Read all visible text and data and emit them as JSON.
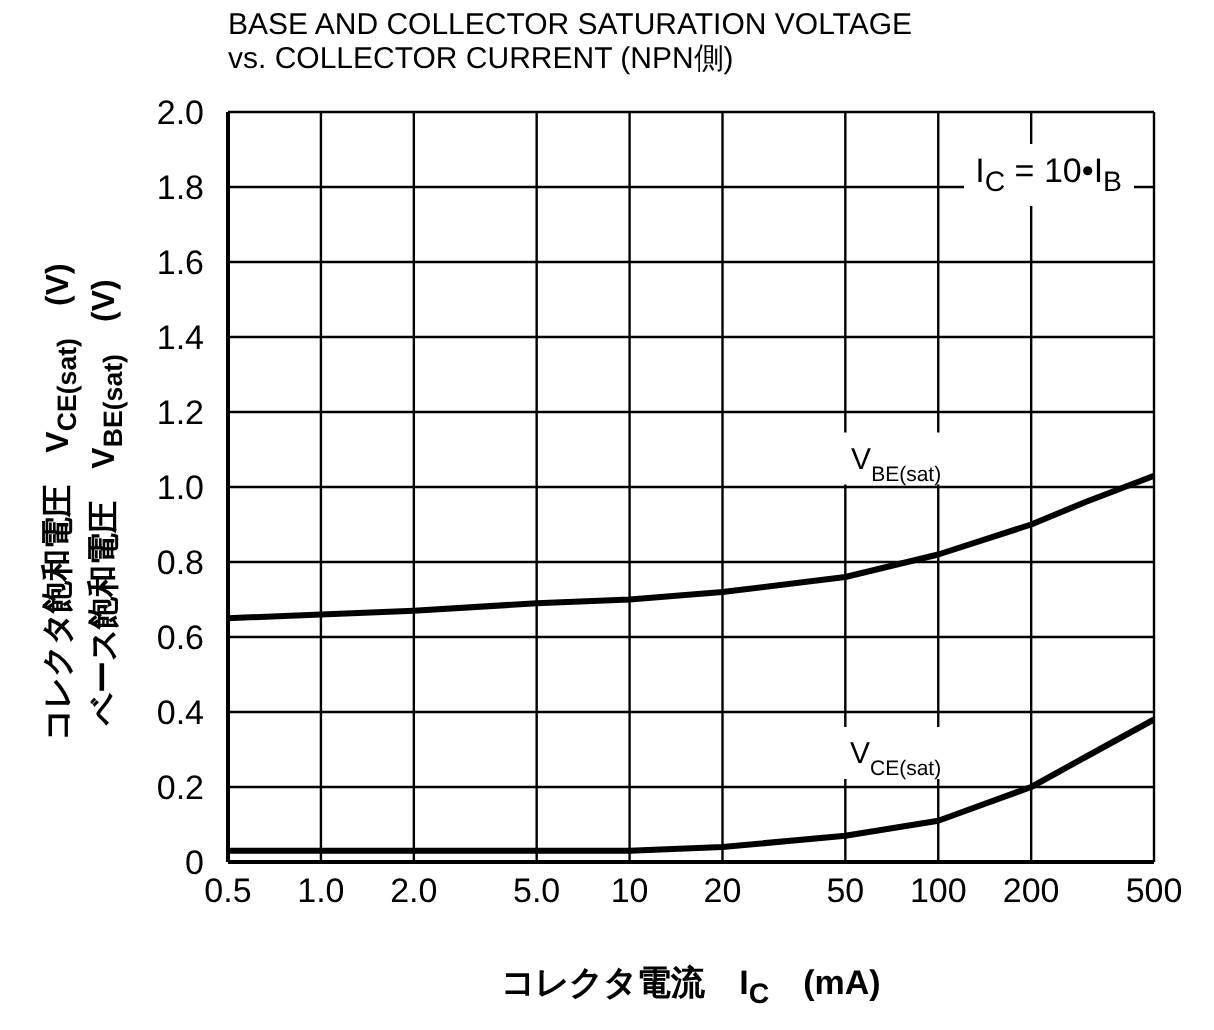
{
  "chart_data": {
    "type": "line",
    "title": "BASE AND COLLECTOR SATURATION VOLTAGE\nvs. COLLECTOR CURRENT (NPN側)",
    "xlabel": "コレクタ電流　I$_{C}$　(mA)",
    "ylabel": "コレクタ飽和電圧　V$_{CE(sat)}$　(V)\nベース飽和電圧　V$_{BE(sat)}$　(V)",
    "annotations": [
      "I$_{C}$ = 10•I$_{B}$"
    ],
    "x": [
      0.5,
      1,
      2,
      5,
      10,
      20,
      50,
      100,
      200,
      300,
      500
    ],
    "series": [
      {
        "name": "V$_{BE(sat)}$",
        "color": "#000000",
        "values": [
          0.65,
          0.66,
          0.67,
          0.69,
          0.7,
          0.72,
          0.76,
          0.82,
          0.9,
          0.96,
          1.03
        ]
      },
      {
        "name": "V$_{CE(sat)}$",
        "color": "#000000",
        "values": [
          0.03,
          0.03,
          0.03,
          0.03,
          0.03,
          0.04,
          0.07,
          0.11,
          0.2,
          0.28,
          0.38
        ]
      }
    ],
    "log": "x",
    "xlim": [
      0.5,
      500
    ],
    "xticks": [
      0.5,
      {
        "value": 1,
        "label": "1.0"
      },
      {
        "value": 2,
        "label": "2.0"
      },
      {
        "value": 5,
        "label": "5.0"
      },
      10,
      20,
      50,
      100,
      200,
      500
    ],
    "ylim": [
      0,
      2
    ],
    "yticks": [
      0,
      0.2,
      0.4,
      0.6,
      0.8,
      {
        "value": 1,
        "label": "1.0"
      },
      1.2,
      1.4,
      1.6,
      1.8,
      {
        "value": 2,
        "label": "2.0"
      }
    ],
    "grid": true,
    "legend": false,
    "marker": "none",
    "line_style": "solid"
  }
}
